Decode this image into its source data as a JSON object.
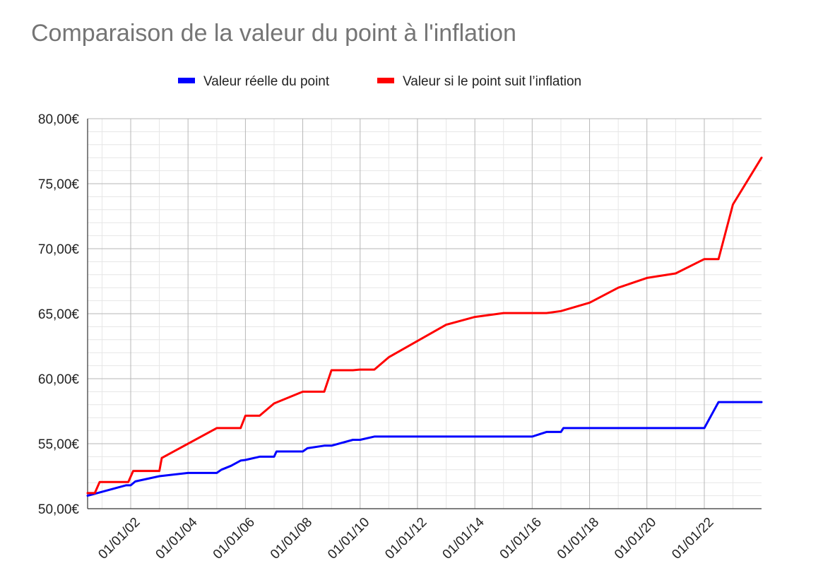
{
  "chart_data": {
    "type": "line",
    "title": "Comparaison de la valeur du point à l'inflation",
    "xlabel": "",
    "ylabel": "",
    "ylim": [
      50,
      80
    ],
    "xlim": [
      "2000-07-01",
      "2023-12-31"
    ],
    "y_ticks": [
      "50,00€",
      "55,00€",
      "60,00€",
      "65,00€",
      "70,00€",
      "75,00€",
      "80,00€"
    ],
    "y_tick_values": [
      50,
      55,
      60,
      65,
      70,
      75,
      80
    ],
    "x_ticks": [
      "01/01/02",
      "01/01/04",
      "01/01/06",
      "01/01/08",
      "01/01/10",
      "01/01/12",
      "01/01/14",
      "01/01/16",
      "01/01/18",
      "01/01/20",
      "01/01/22"
    ],
    "x_tick_dates": [
      "2002-01-01",
      "2004-01-01",
      "2006-01-01",
      "2008-01-01",
      "2010-01-01",
      "2012-01-01",
      "2014-01-01",
      "2016-01-01",
      "2018-01-01",
      "2020-01-01",
      "2022-01-01"
    ],
    "grid": true,
    "legend_position": "top",
    "series": [
      {
        "name": "Valeur réelle du point",
        "color": "#0000ff",
        "points": [
          [
            "2000-07-01",
            51.0
          ],
          [
            "2001-11-01",
            51.8
          ],
          [
            "2002-01-01",
            51.8
          ],
          [
            "2002-03-01",
            52.1
          ],
          [
            "2003-01-01",
            52.5
          ],
          [
            "2004-01-01",
            52.75
          ],
          [
            "2005-01-01",
            52.75
          ],
          [
            "2005-03-01",
            53.0
          ],
          [
            "2005-07-01",
            53.3
          ],
          [
            "2005-11-01",
            53.7
          ],
          [
            "2006-01-01",
            53.75
          ],
          [
            "2006-07-01",
            54.0
          ],
          [
            "2007-01-01",
            54.0
          ],
          [
            "2007-02-01",
            54.4
          ],
          [
            "2008-01-01",
            54.4
          ],
          [
            "2008-03-01",
            54.65
          ],
          [
            "2008-10-01",
            54.85
          ],
          [
            "2009-01-01",
            54.85
          ],
          [
            "2009-10-01",
            55.3
          ],
          [
            "2010-01-01",
            55.3
          ],
          [
            "2010-07-01",
            55.55
          ],
          [
            "2016-01-01",
            55.55
          ],
          [
            "2016-07-01",
            55.9
          ],
          [
            "2017-01-01",
            55.9
          ],
          [
            "2017-02-01",
            56.2
          ],
          [
            "2022-01-01",
            56.2
          ],
          [
            "2022-07-01",
            58.2
          ],
          [
            "2023-12-31",
            58.2
          ]
        ]
      },
      {
        "name": "Valeur si le point suit l’inflation",
        "color": "#ff0000",
        "points": [
          [
            "2000-07-01",
            51.2
          ],
          [
            "2000-10-01",
            51.2
          ],
          [
            "2000-12-01",
            52.05
          ],
          [
            "2001-12-01",
            52.05
          ],
          [
            "2002-02-01",
            52.9
          ],
          [
            "2003-01-01",
            52.9
          ],
          [
            "2003-02-01",
            53.9
          ],
          [
            "2005-01-01",
            56.2
          ],
          [
            "2005-11-01",
            56.2
          ],
          [
            "2006-01-01",
            57.15
          ],
          [
            "2006-07-01",
            57.15
          ],
          [
            "2007-01-01",
            58.1
          ],
          [
            "2008-01-01",
            59.0
          ],
          [
            "2008-10-01",
            59.0
          ],
          [
            "2009-01-01",
            60.65
          ],
          [
            "2009-10-01",
            60.65
          ],
          [
            "2010-01-01",
            60.7
          ],
          [
            "2010-07-01",
            60.7
          ],
          [
            "2011-01-01",
            61.65
          ],
          [
            "2013-01-01",
            64.15
          ],
          [
            "2014-01-01",
            64.75
          ],
          [
            "2015-01-01",
            65.05
          ],
          [
            "2016-01-01",
            65.05
          ],
          [
            "2016-07-01",
            65.05
          ],
          [
            "2017-01-01",
            65.2
          ],
          [
            "2018-01-01",
            65.85
          ],
          [
            "2019-01-01",
            67.0
          ],
          [
            "2020-01-01",
            67.75
          ],
          [
            "2021-01-01",
            68.1
          ],
          [
            "2022-01-01",
            69.2
          ],
          [
            "2022-07-01",
            69.2
          ],
          [
            "2023-01-01",
            73.4
          ],
          [
            "2023-12-31",
            77.0
          ]
        ]
      }
    ]
  }
}
